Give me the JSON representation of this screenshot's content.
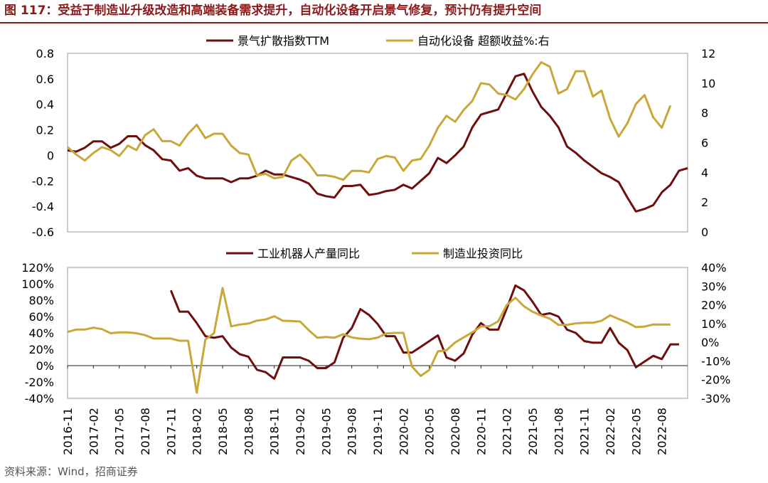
{
  "figure": {
    "title": "图 117：受益于制造业升级改造和高端装备需求提升，自动化设备开启景气修复，预计仍有提升空间",
    "source": "资料来源：Wind，招商证券"
  },
  "colors": {
    "series_dark": "#6e0f0f",
    "series_gold": "#c9a83a",
    "title": "#8b1a1a"
  },
  "chart_data": [
    {
      "type": "line",
      "legend_position": "top-center",
      "legend": [
        "景气扩散指数TTM",
        "自动化设备 超额收益%:右"
      ],
      "y_left": {
        "lim": [
          -0.6,
          0.8
        ],
        "ticks": [
          "0.8",
          "0.6",
          "0.4",
          "0.2",
          "0",
          "-0.2",
          "-0.4",
          "-0.6"
        ],
        "tick_values": [
          0.8,
          0.6,
          0.4,
          0.2,
          0,
          -0.2,
          -0.4,
          -0.6
        ]
      },
      "y_right": {
        "lim": [
          0,
          12
        ],
        "ticks": [
          "12",
          "10",
          "8",
          "6",
          "4",
          "2",
          "0"
        ],
        "tick_values": [
          12,
          10,
          8,
          6,
          4,
          2,
          0
        ]
      },
      "series": [
        {
          "name": "景气扩散指数TTM",
          "axis": "left",
          "values": [
            0.04,
            0.03,
            0.06,
            0.11,
            0.11,
            0.06,
            0.09,
            0.15,
            0.15,
            0.08,
            0.04,
            -0.03,
            -0.04,
            -0.12,
            -0.1,
            -0.16,
            -0.18,
            -0.18,
            -0.18,
            -0.21,
            -0.18,
            -0.18,
            -0.16,
            -0.12,
            -0.15,
            -0.15,
            -0.17,
            -0.19,
            -0.22,
            -0.3,
            -0.32,
            -0.33,
            -0.24,
            -0.24,
            -0.23,
            -0.31,
            -0.3,
            -0.28,
            -0.27,
            -0.23,
            -0.26,
            -0.2,
            -0.14,
            -0.02,
            -0.06,
            0.0,
            0.07,
            0.22,
            0.32,
            0.34,
            0.36,
            0.49,
            0.62,
            0.64,
            0.5,
            0.38,
            0.31,
            0.22,
            0.07,
            0.02,
            -0.04,
            -0.09,
            -0.14,
            -0.17,
            -0.21,
            -0.33,
            -0.44,
            -0.42,
            -0.39,
            -0.29,
            -0.23,
            -0.12,
            -0.1
          ]
        },
        {
          "name": "自动化设备 超额收益%:右",
          "axis": "right",
          "values": [
            5.7,
            5.2,
            4.8,
            5.3,
            5.7,
            5.5,
            5.1,
            5.8,
            5.5,
            6.5,
            6.9,
            6.1,
            6.1,
            5.8,
            6.6,
            7.2,
            6.3,
            6.6,
            6.6,
            5.8,
            5.3,
            5.2,
            3.8,
            3.9,
            3.6,
            3.7,
            4.8,
            5.2,
            4.6,
            3.8,
            3.8,
            3.7,
            3.5,
            4.1,
            4.1,
            4.0,
            4.9,
            5.1,
            5.0,
            4.1,
            4.8,
            4.9,
            5.8,
            7.0,
            7.8,
            7.4,
            8.2,
            8.8,
            10.0,
            9.9,
            9.3,
            9.2,
            8.9,
            9.6,
            10.6,
            11.4,
            11.1,
            9.3,
            9.6,
            10.8,
            10.8,
            9.1,
            9.5,
            7.6,
            6.4,
            7.3,
            8.6,
            9.2,
            7.7,
            7.0,
            8.5
          ]
        }
      ]
    },
    {
      "type": "line",
      "legend_position": "top-center",
      "legend": [
        "工业机器人产量同比",
        "制造业投资同比"
      ],
      "xlabels": [
        "2016-11",
        "2017-02",
        "2017-05",
        "2017-08",
        "2017-11",
        "2018-02",
        "2018-05",
        "2018-08",
        "2018-11",
        "2019-02",
        "2019-05",
        "2019-08",
        "2019-11",
        "2020-02",
        "2020-05",
        "2020-08",
        "2020-11",
        "2021-02",
        "2021-05",
        "2021-08",
        "2021-11",
        "2022-02",
        "2022-05",
        "2022-08"
      ],
      "y_left": {
        "lim": [
          -40,
          120
        ],
        "ticks": [
          "120%",
          "100%",
          "80%",
          "60%",
          "40%",
          "20%",
          "0%",
          "-20%",
          "-40%"
        ],
        "tick_values": [
          120,
          100,
          80,
          60,
          40,
          20,
          0,
          -20,
          -40
        ]
      },
      "y_right": {
        "lim": [
          -30,
          40
        ],
        "ticks": [
          "40%",
          "30%",
          "20%",
          "10%",
          "0%",
          "-10%",
          "-20%",
          "-30%"
        ],
        "tick_values": [
          40,
          30,
          20,
          10,
          0,
          -10,
          -20,
          -30
        ]
      },
      "series": [
        {
          "name": "工业机器人产量同比",
          "axis": "left",
          "start_month": 12,
          "values": [
            92,
            66,
            66,
            52,
            36,
            34,
            36,
            22,
            14,
            11,
            -5,
            -8,
            -16,
            10,
            10,
            10,
            6,
            -3,
            -3,
            4,
            34,
            46,
            69,
            62,
            51,
            36,
            36,
            16,
            16,
            23,
            30,
            37,
            10,
            6,
            15,
            38,
            52,
            44,
            44,
            70,
            98,
            92,
            78,
            62,
            64,
            60,
            44,
            40,
            30,
            28,
            28,
            46,
            28,
            19,
            -2,
            5,
            12,
            8,
            26,
            26
          ]
        },
        {
          "name": "制造业投资同比",
          "axis": "right",
          "values": [
            5.5,
            6.8,
            6.8,
            7.8,
            7.0,
            4.8,
            5.3,
            5.3,
            4.8,
            3.8,
            2.0,
            2.0,
            2.0,
            0.8,
            0.8,
            -27,
            1.5,
            4.8,
            29,
            8.5,
            9.5,
            10,
            11.6,
            12.2,
            13.9,
            11.5,
            11.4,
            11.1,
            6.5,
            2.4,
            2.8,
            2.4,
            4.3,
            2.6,
            1.9,
            1.6,
            2.5,
            4.7,
            5.0,
            5.0,
            -13,
            -18,
            -14.8,
            -4.9,
            -4.3,
            -0.1,
            2.6,
            5.3,
            8.4,
            8.6,
            11.2,
            20,
            23.8,
            19.2,
            16.3,
            14.3,
            12.6,
            9.3,
            9.3,
            10.1,
            10.4,
            10.4,
            11.5,
            14.4,
            12.4,
            10.6,
            8.1,
            8.4,
            9.5,
            9.5,
            9.5
          ]
        }
      ]
    }
  ]
}
